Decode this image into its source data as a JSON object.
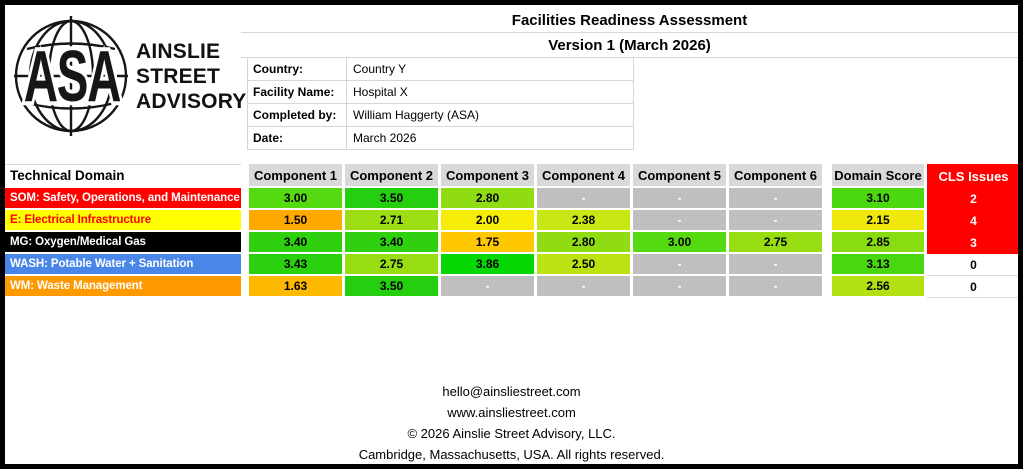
{
  "logo": {
    "acronym": "ASA",
    "company_lines": [
      "AINSLIE",
      "STREET",
      "ADVISORY"
    ]
  },
  "header": {
    "title": "Facilities Readiness Assessment",
    "subtitle": "Version 1 (March 2026)",
    "fields": [
      {
        "label": "Country:",
        "value": "Country Y"
      },
      {
        "label": "Facility Name:",
        "value": "Hospital X"
      },
      {
        "label": "Completed by:",
        "value": "William Haggerty (ASA)"
      },
      {
        "label": "Date:",
        "value": "March 2026"
      }
    ]
  },
  "table": {
    "domain_header": "Technical Domain",
    "component_headers": [
      "Component 1",
      "Component 2",
      "Component 3",
      "Component 4",
      "Component 5",
      "Component 6"
    ],
    "score_header": "Domain Score",
    "cls_header": "CLS Issues",
    "empty_marker": "-",
    "colors": {
      "header_bg": "#D9D9D9",
      "empty_cell_bg": "#BFBFBF",
      "cls_red": "#FF0000"
    },
    "rows": [
      {
        "domain": "SOM: Safety, Operations, and Maintenance",
        "domain_bg": "#FF0000",
        "domain_fg": "#FFFFFF",
        "components": [
          {
            "value": "3.00",
            "color": "#55D911"
          },
          {
            "value": "3.50",
            "color": "#25CE0F"
          },
          {
            "value": "2.80",
            "color": "#90DC12"
          },
          {
            "value": "-",
            "color": "#BFBFBF",
            "empty": true
          },
          {
            "value": "-",
            "color": "#BFBFBF",
            "empty": true
          },
          {
            "value": "-",
            "color": "#BFBFBF",
            "empty": true
          }
        ],
        "score": {
          "value": "3.10",
          "color": "#4CD811"
        },
        "cls": {
          "value": "2",
          "bg": "#FF0000",
          "fg": "#FFFFFF"
        }
      },
      {
        "domain": "E: Electrical Infrastructure",
        "domain_bg": "#FFFF00",
        "domain_fg": "#FF0000",
        "components": [
          {
            "value": "1.50",
            "color": "#FFA800"
          },
          {
            "value": "2.71",
            "color": "#9DDE13"
          },
          {
            "value": "2.00",
            "color": "#F6EC0A"
          },
          {
            "value": "2.38",
            "color": "#C8E514"
          },
          {
            "value": "-",
            "color": "#BFBFBF",
            "empty": true
          },
          {
            "value": "-",
            "color": "#BFBFBF",
            "empty": true
          }
        ],
        "score": {
          "value": "2.15",
          "color": "#EFE80C"
        },
        "cls": {
          "value": "4",
          "bg": "#FF0000",
          "fg": "#FFFFFF"
        }
      },
      {
        "domain": "MG: Oxygen/Medical Gas",
        "domain_bg": "#000000",
        "domain_fg": "#FFFFFF",
        "components": [
          {
            "value": "3.40",
            "color": "#2ED00F"
          },
          {
            "value": "3.40",
            "color": "#2ED00F"
          },
          {
            "value": "1.75",
            "color": "#FFC800"
          },
          {
            "value": "2.80",
            "color": "#90DC12"
          },
          {
            "value": "3.00",
            "color": "#55D911"
          },
          {
            "value": "2.75",
            "color": "#98DD12"
          }
        ],
        "score": {
          "value": "2.85",
          "color": "#89DB12"
        },
        "cls": {
          "value": "3",
          "bg": "#FF0000",
          "fg": "#FFFFFF"
        }
      },
      {
        "domain": "WASH: Potable Water + Sanitation",
        "domain_bg": "#4A86E8",
        "domain_fg": "#FFFFFF",
        "components": [
          {
            "value": "3.43",
            "color": "#2BD00F"
          },
          {
            "value": "2.75",
            "color": "#98DD12"
          },
          {
            "value": "3.86",
            "color": "#05D805"
          },
          {
            "value": "2.50",
            "color": "#BBE213"
          },
          {
            "value": "-",
            "color": "#BFBFBF",
            "empty": true
          },
          {
            "value": "-",
            "color": "#BFBFBF",
            "empty": true
          }
        ],
        "score": {
          "value": "3.13",
          "color": "#49D711"
        },
        "cls": {
          "value": "0",
          "bg": "#FFFFFF",
          "fg": "#000000"
        }
      },
      {
        "domain": "WM: Waste Management",
        "domain_bg": "#FF9900",
        "domain_fg": "#FFFFFF",
        "components": [
          {
            "value": "1.63",
            "color": "#FFB900"
          },
          {
            "value": "3.50",
            "color": "#25CE0F"
          },
          {
            "value": "-",
            "color": "#BFBFBF",
            "empty": true
          },
          {
            "value": "-",
            "color": "#BFBFBF",
            "empty": true
          },
          {
            "value": "-",
            "color": "#BFBFBF",
            "empty": true
          },
          {
            "value": "-",
            "color": "#BFBFBF",
            "empty": true
          }
        ],
        "score": {
          "value": "2.56",
          "color": "#B2E013"
        },
        "cls": {
          "value": "0",
          "bg": "#FFFFFF",
          "fg": "#000000"
        }
      }
    ]
  },
  "footer": {
    "email": "hello@ainsliestreet.com",
    "website": "www.ainsliestreet.com",
    "copyright": "© 2026 Ainslie Street Advisory, LLC.",
    "address": "Cambridge, Massachusetts, USA. All rights reserved."
  }
}
